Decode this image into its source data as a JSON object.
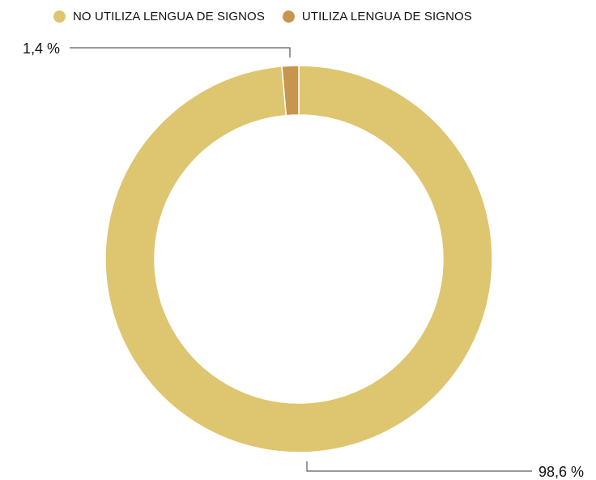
{
  "chart_data": {
    "type": "pie",
    "categories": [
      "NO UTILIZA LENGUA DE SIGNOS",
      "UTILIZA LENGUA DE SIGNOS"
    ],
    "values": [
      98.6,
      1.4
    ],
    "data_labels": [
      "98,6 %",
      "1,4 %"
    ],
    "colors": [
      "#dec570",
      "#c8954c"
    ],
    "donut": true,
    "legend_position": "top"
  }
}
